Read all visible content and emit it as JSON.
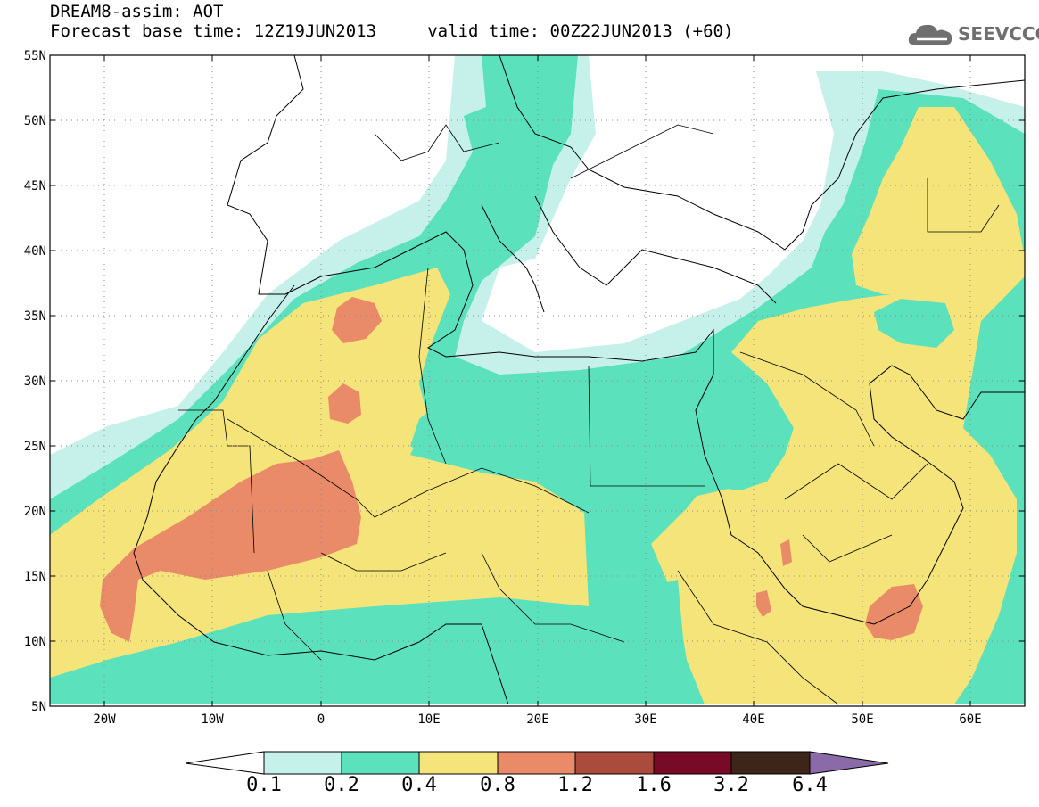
{
  "header": {
    "title_line1": "DREAM8-assim: AOT",
    "title_line2": "Forecast base time: 12Z19JUN2013     valid time: 00Z22JUN2013 (+60)",
    "logo_text": "SEEVCCC"
  },
  "map": {
    "lat_labels": [
      "55N",
      "50N",
      "45N",
      "40N",
      "35N",
      "30N",
      "25N",
      "20N",
      "15N",
      "10N",
      "5N"
    ],
    "lon_labels": [
      "20W",
      "10W",
      "0",
      "10E",
      "20E",
      "30E",
      "40E",
      "50E",
      "60E"
    ]
  },
  "colorbar": {
    "labels": [
      "0.1",
      "0.2",
      "0.4",
      "0.8",
      "1.2",
      "1.6",
      "3.2",
      "6.4"
    ],
    "colors": [
      "#ffffff",
      "#c6f0ea",
      "#5ce1bd",
      "#f5e47a",
      "#e98a68",
      "#ab4b3c",
      "#770a27",
      "#3d2519",
      "#8a6aa9"
    ]
  },
  "palette": {
    "lvl_01": "#c6f0ea",
    "lvl_02": "#5ce1bd",
    "lvl_04": "#f5e47a",
    "lvl_08": "#e98a68"
  }
}
